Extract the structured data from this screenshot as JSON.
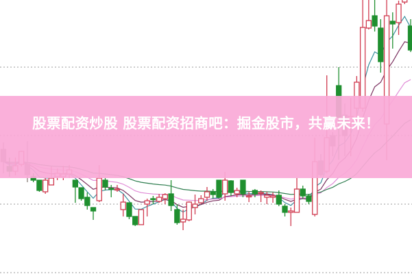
{
  "banner": {
    "text": "股票配资炒股 股票配资招商吧：掘金股市，共赢未来！",
    "color": "#fab0dc"
  },
  "chart_data": {
    "type": "candlestick",
    "title": "",
    "xlabel": "",
    "ylabel": "",
    "ylim": [
      0,
      40
    ],
    "grid": {
      "horizontal": true,
      "style": "dotted",
      "levels": [
        0,
        10,
        20,
        30
      ]
    },
    "colors": {
      "up": "#d0394e",
      "down": "#1f8f2f",
      "neutral": "#8a7f7a"
    },
    "candles": [
      {
        "o": 18.0,
        "h": 19.0,
        "l": 14.5,
        "c": 16.2,
        "col": "neutral"
      },
      {
        "o": 15.5,
        "h": 16.8,
        "l": 14.0,
        "c": 14.8,
        "col": "down"
      },
      {
        "o": 14.8,
        "h": 16.8,
        "l": 14.2,
        "c": 15.6,
        "col": "up"
      },
      {
        "o": 15.8,
        "h": 17.8,
        "l": 15.5,
        "c": 17.7,
        "col": "up"
      },
      {
        "o": 15.8,
        "h": 19.2,
        "l": 13.2,
        "c": 14.3,
        "col": "neutral"
      },
      {
        "o": 14.0,
        "h": 14.5,
        "l": 13.2,
        "c": 13.5,
        "col": "down"
      },
      {
        "o": 13.5,
        "h": 13.5,
        "l": 11.8,
        "c": 12.0,
        "col": "down"
      },
      {
        "o": 11.8,
        "h": 13.8,
        "l": 11.5,
        "c": 13.5,
        "col": "up"
      },
      {
        "o": 12.8,
        "h": 15.5,
        "l": 12.8,
        "c": 13.8,
        "col": "up"
      },
      {
        "o": 14.0,
        "h": 15.2,
        "l": 13.5,
        "c": 14.5,
        "col": "up"
      },
      {
        "o": 14.0,
        "h": 15.6,
        "l": 13.5,
        "c": 14.4,
        "col": "up"
      },
      {
        "o": 14.4,
        "h": 15.7,
        "l": 13.8,
        "c": 15.0,
        "col": "up"
      },
      {
        "o": 13.5,
        "h": 13.5,
        "l": 10.2,
        "c": 12.5,
        "col": "down"
      },
      {
        "o": 12.4,
        "h": 12.4,
        "l": 10.5,
        "c": 10.8,
        "col": "down"
      },
      {
        "o": 11.0,
        "h": 11.7,
        "l": 9.2,
        "c": 9.8,
        "col": "down"
      },
      {
        "o": 9.5,
        "h": 9.5,
        "l": 7.7,
        "c": 9.0,
        "col": "down"
      },
      {
        "o": 10.5,
        "h": 15.7,
        "l": 10.3,
        "c": 13.8,
        "col": "up"
      },
      {
        "o": 13.5,
        "h": 13.8,
        "l": 12.0,
        "c": 12.5,
        "col": "down"
      },
      {
        "o": 12.3,
        "h": 12.8,
        "l": 11.0,
        "c": 12.2,
        "col": "down"
      },
      {
        "o": 12.1,
        "h": 12.8,
        "l": 11.8,
        "c": 12.2,
        "col": "up"
      },
      {
        "o": 9.2,
        "h": 11.5,
        "l": 8.2,
        "c": 10.3,
        "col": "up"
      },
      {
        "o": 10.2,
        "h": 10.2,
        "l": 7.8,
        "c": 8.2,
        "col": "down"
      },
      {
        "o": 8.2,
        "h": 8.2,
        "l": 6.8,
        "c": 7.0,
        "col": "down"
      },
      {
        "o": 7.0,
        "h": 9.2,
        "l": 7.0,
        "c": 9.2,
        "col": "up"
      },
      {
        "o": 10.0,
        "h": 10.8,
        "l": 8.2,
        "c": 10.5,
        "col": "up"
      },
      {
        "o": 10.8,
        "h": 11.2,
        "l": 10.0,
        "c": 10.7,
        "col": "down"
      },
      {
        "o": 10.4,
        "h": 11.5,
        "l": 10.2,
        "c": 11.0,
        "col": "up"
      },
      {
        "o": 10.8,
        "h": 11.6,
        "l": 10.0,
        "c": 11.4,
        "col": "up"
      },
      {
        "o": 11.5,
        "h": 13.5,
        "l": 9.0,
        "c": 9.8,
        "col": "down"
      },
      {
        "o": 9.2,
        "h": 10.0,
        "l": 7.0,
        "c": 7.3,
        "col": "down"
      },
      {
        "o": 7.4,
        "h": 9.2,
        "l": 6.2,
        "c": 7.8,
        "col": "up"
      },
      {
        "o": 7.7,
        "h": 10.4,
        "l": 7.5,
        "c": 10.3,
        "col": "up"
      },
      {
        "o": 9.5,
        "h": 11.4,
        "l": 8.5,
        "c": 10.0,
        "col": "up"
      },
      {
        "o": 10.2,
        "h": 11.3,
        "l": 10.0,
        "c": 10.8,
        "col": "up"
      },
      {
        "o": 11.0,
        "h": 12.5,
        "l": 10.5,
        "c": 11.8,
        "col": "up"
      },
      {
        "o": 11.8,
        "h": 12.2,
        "l": 10.8,
        "c": 11.4,
        "col": "down"
      },
      {
        "o": 13.5,
        "h": 13.5,
        "l": 10.8,
        "c": 11.0,
        "col": "down"
      },
      {
        "o": 11.5,
        "h": 14.7,
        "l": 10.5,
        "c": 13.5,
        "col": "up"
      },
      {
        "o": 13.4,
        "h": 13.5,
        "l": 11.2,
        "c": 11.7,
        "col": "down"
      },
      {
        "o": 11.5,
        "h": 12.4,
        "l": 11.0,
        "c": 12.0,
        "col": "up"
      },
      {
        "o": 13.5,
        "h": 13.5,
        "l": 11.0,
        "c": 11.5,
        "col": "down"
      },
      {
        "o": 11.1,
        "h": 11.8,
        "l": 10.3,
        "c": 11.2,
        "col": "up"
      },
      {
        "o": 12.0,
        "h": 12.2,
        "l": 11.0,
        "c": 11.5,
        "col": "down"
      },
      {
        "o": 11.6,
        "h": 12.0,
        "l": 10.3,
        "c": 11.7,
        "col": "up"
      },
      {
        "o": 11.0,
        "h": 11.8,
        "l": 10.0,
        "c": 11.3,
        "col": "up"
      },
      {
        "o": 11.0,
        "h": 11.7,
        "l": 10.2,
        "c": 11.2,
        "col": "up"
      },
      {
        "o": 11.3,
        "h": 12.0,
        "l": 9.7,
        "c": 10.0,
        "col": "down"
      },
      {
        "o": 9.7,
        "h": 10.0,
        "l": 8.2,
        "c": 8.8,
        "col": "down"
      },
      {
        "o": 8.8,
        "h": 9.5,
        "l": 6.8,
        "c": 9.0,
        "col": "up"
      },
      {
        "o": 8.8,
        "h": 13.8,
        "l": 8.8,
        "c": 12.2,
        "col": "up"
      },
      {
        "o": 12.2,
        "h": 12.7,
        "l": 10.8,
        "c": 11.2,
        "col": "down"
      },
      {
        "o": 11.2,
        "h": 11.5,
        "l": 10.0,
        "c": 10.4,
        "col": "down"
      },
      {
        "o": 8.5,
        "h": 19.7,
        "l": 8.2,
        "c": 16.2,
        "col": "up"
      },
      {
        "o": 16.3,
        "h": 17.3,
        "l": 14.0,
        "c": 14.3,
        "col": "neutral"
      },
      {
        "o": 14.8,
        "h": 28.8,
        "l": 14.5,
        "c": 19.7,
        "col": "up"
      },
      {
        "o": 20.0,
        "h": 20.5,
        "l": 17.0,
        "c": 18.5,
        "col": "neutral"
      },
      {
        "o": 27.3,
        "h": 30.0,
        "l": 16.5,
        "c": 22.7,
        "col": "down"
      },
      {
        "o": 23.0,
        "h": 24.7,
        "l": 17.0,
        "c": 20.0,
        "col": "neutral"
      },
      {
        "o": 22.0,
        "h": 25.5,
        "l": 17.0,
        "c": 22.8,
        "col": "up"
      },
      {
        "o": 24.0,
        "h": 28.7,
        "l": 22.0,
        "c": 27.8,
        "col": "up"
      },
      {
        "o": 24.0,
        "h": 40.0,
        "l": 23.5,
        "c": 35.8,
        "col": "up"
      },
      {
        "o": 35.7,
        "h": 40.0,
        "l": 35.5,
        "c": 36.8,
        "col": "up"
      },
      {
        "o": 37.5,
        "h": 40.0,
        "l": 35.2,
        "c": 36.0,
        "col": "down"
      },
      {
        "o": 35.7,
        "h": 37.0,
        "l": 29.2,
        "c": 30.8,
        "col": "down"
      },
      {
        "o": 21.7,
        "h": 40.0,
        "l": 16.4,
        "c": 37.5,
        "col": "up"
      },
      {
        "o": 36.7,
        "h": 38.0,
        "l": 32.7,
        "c": 36.3,
        "col": "down"
      },
      {
        "o": 36.5,
        "h": 39.7,
        "l": 34.7,
        "c": 39.2,
        "col": "up"
      },
      {
        "o": 39.5,
        "h": 40.0,
        "l": 39.2,
        "c": 40.0,
        "col": "up"
      },
      {
        "o": 36.0,
        "h": 37.0,
        "l": 32.2,
        "c": 32.5,
        "col": "down"
      }
    ],
    "moving_averages": [
      {
        "period": 5,
        "color": "#3b8f9e"
      },
      {
        "period": 10,
        "color": "#7a2f5e"
      },
      {
        "period": 20,
        "color": "#e08ad6"
      },
      {
        "period": 40,
        "color": "#2e7d4f"
      }
    ]
  }
}
